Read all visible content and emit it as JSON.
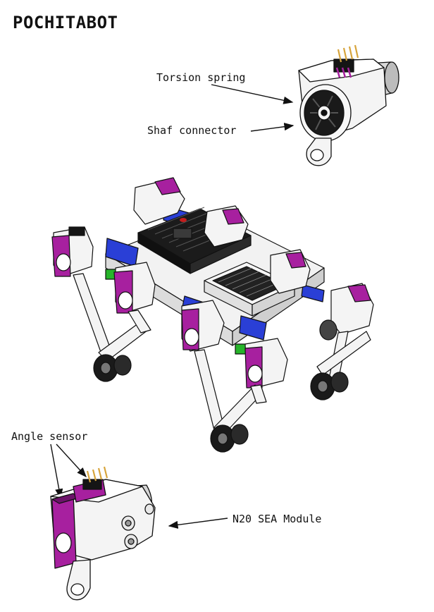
{
  "title": "POCHITABOT",
  "labels": {
    "torsion_spring": "Torsion spring",
    "shaft_connector": "Shaf connector",
    "angle_sensor": "Angle sensor",
    "sea_module": "N20 SEA Module"
  },
  "colors": {
    "magenta": "#a7209f",
    "magenta_dark": "#6d136a",
    "blue": "#2a3fd6",
    "green": "#26b42a",
    "black": "#151515",
    "gold": "#d7a43c",
    "white_part": "#f4f4f4",
    "line": "#111111"
  }
}
